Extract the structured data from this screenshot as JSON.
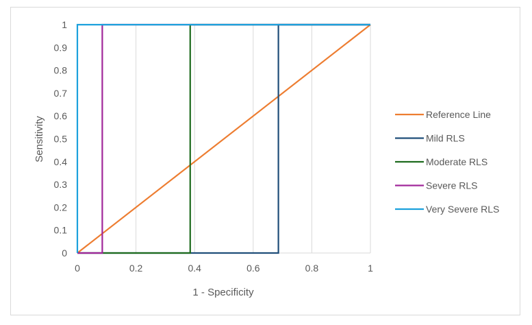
{
  "chart_data": {
    "type": "line",
    "title": "",
    "xlabel": "1 - Specificity",
    "ylabel": "Sensitivity",
    "xlim": [
      0,
      1
    ],
    "ylim": [
      0,
      1
    ],
    "x_ticks": [
      "0",
      "0.2",
      "0.4",
      "0.6",
      "0.8",
      "1"
    ],
    "x_tick_values": [
      0,
      0.2,
      0.4,
      0.6,
      0.8,
      1
    ],
    "y_ticks": [
      "0",
      "0.1",
      "0.2",
      "0.3",
      "0.4",
      "0.5",
      "0.6",
      "0.7",
      "0.8",
      "0.9",
      "1"
    ],
    "y_tick_values": [
      0,
      0.1,
      0.2,
      0.3,
      0.4,
      0.5,
      0.6,
      0.7,
      0.8,
      0.9,
      1
    ],
    "grid": "vertical",
    "legend_position": "right",
    "series": [
      {
        "name": "Reference Line",
        "color": "#ed7d31",
        "x": [
          0,
          1
        ],
        "y": [
          0,
          1
        ]
      },
      {
        "name": "Mild RLS",
        "color": "#1f4e79",
        "x": [
          0,
          0.686,
          0.686,
          1
        ],
        "y": [
          0,
          0,
          1,
          1
        ]
      },
      {
        "name": "Moderate RLS",
        "color": "#1e6b1e",
        "x": [
          0,
          0.385,
          0.385,
          1
        ],
        "y": [
          0,
          0,
          1,
          1
        ]
      },
      {
        "name": "Severe RLS",
        "color": "#a0279a",
        "x": [
          0,
          0.085,
          0.085,
          1
        ],
        "y": [
          0,
          0,
          1,
          1
        ]
      },
      {
        "name": "Very Severe RLS",
        "color": "#1aa0dc",
        "x": [
          0,
          0,
          1
        ],
        "y": [
          0,
          1,
          1
        ]
      }
    ]
  }
}
